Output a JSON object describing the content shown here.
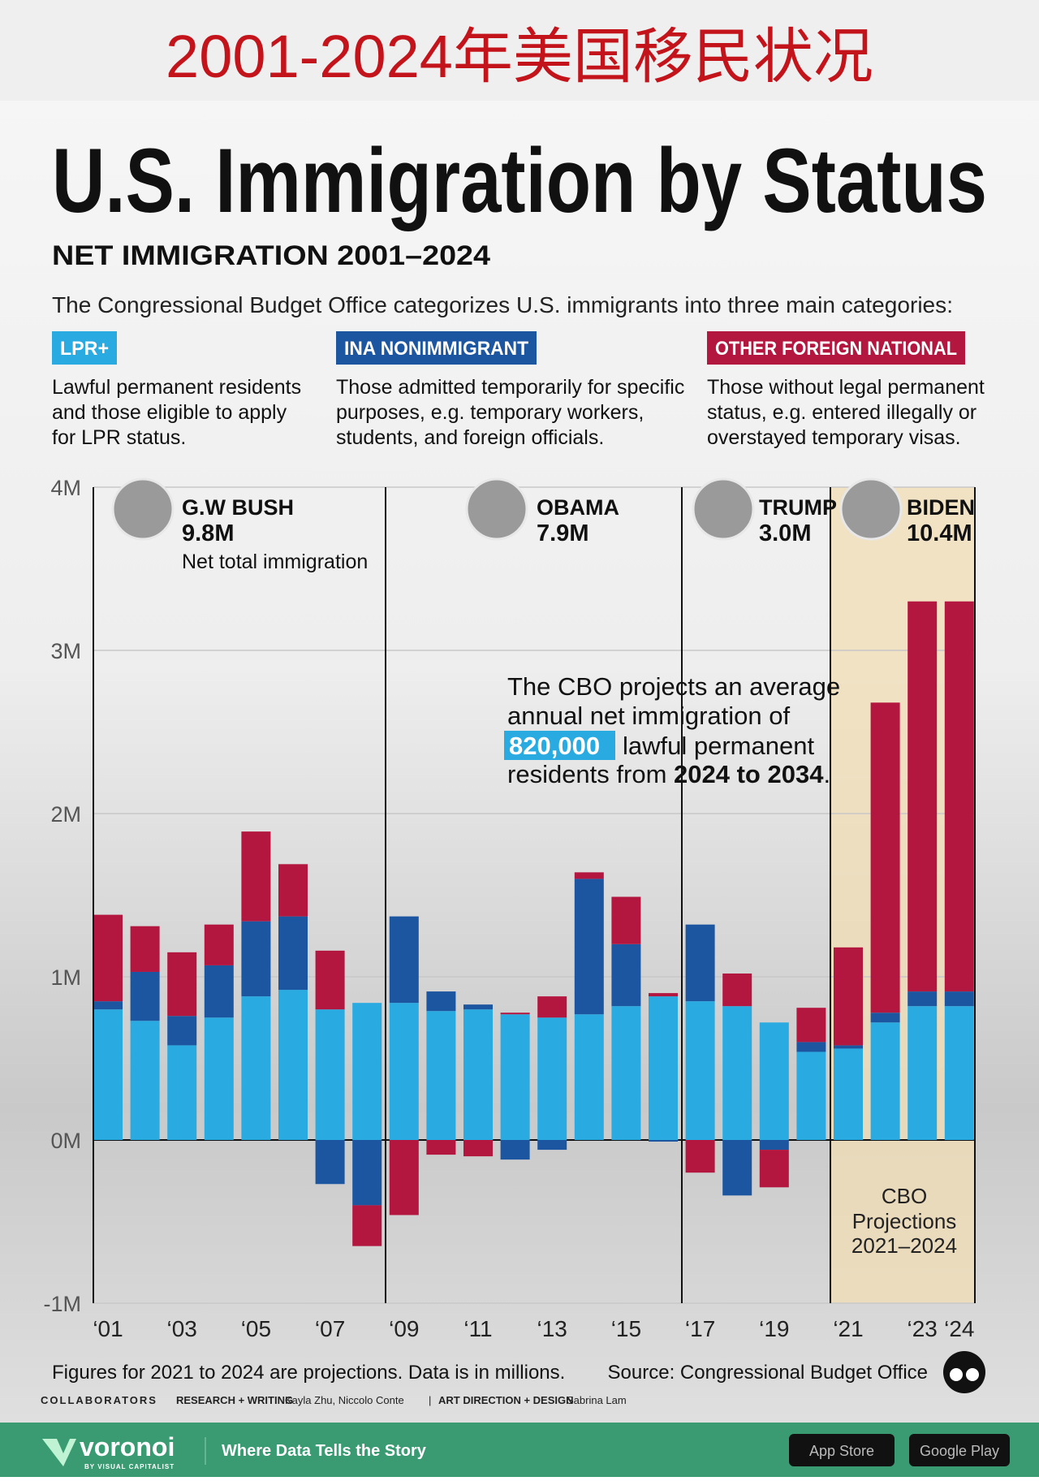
{
  "header": {
    "title": "2001-2024年美国移民状况"
  },
  "chart_data": {
    "type": "stacked_bar",
    "title": "U.S. Immigration by Status",
    "subtitle": "NET IMMIGRATION 2001–2024",
    "intro": "The Congressional Budget Office categorizes U.S. immigrants into three main categories:",
    "categories": [
      "‘01",
      null,
      "‘03",
      null,
      "‘05",
      null,
      "‘07",
      null,
      "‘09",
      null,
      "‘11",
      null,
      "‘13",
      null,
      "‘15",
      null,
      "‘17",
      null,
      "‘19",
      null,
      "‘21",
      null,
      "‘23",
      "‘24"
    ],
    "series": [
      {
        "name": "LPR+",
        "color": "#29abe2",
        "description": [
          "Lawful permanent residents",
          "and those eligible to apply",
          "for LPR status."
        ],
        "values": [
          0.8,
          0.73,
          0.58,
          0.75,
          0.88,
          0.92,
          0.8,
          0.84,
          0.84,
          0.79,
          0.8,
          0.77,
          0.75,
          0.77,
          0.82,
          0.88,
          0.85,
          0.82,
          0.72,
          0.54,
          0.56,
          0.72,
          0.82,
          0.82
        ]
      },
      {
        "name": "INA NONIMMIGRANT",
        "color": "#1d56a0",
        "description": [
          "Those admitted temporarily for specific",
          "purposes, e.g. temporary workers,",
          "students, and foreign officials."
        ],
        "values": [
          0.05,
          0.3,
          0.18,
          0.32,
          0.46,
          0.45,
          -0.27,
          -0.4,
          0.53,
          0.12,
          0.03,
          -0.12,
          -0.06,
          0.83,
          0.38,
          -0.01,
          0.47,
          -0.34,
          -0.06,
          0.06,
          0.02,
          0.06,
          0.09,
          0.09
        ]
      },
      {
        "name": "OTHER FOREIGN NATIONAL",
        "color": "#b3163f",
        "description": [
          "Those without legal permanent",
          "status, e.g. entered illegally or",
          "overstayed temporary visas."
        ],
        "values": [
          0.53,
          0.28,
          0.39,
          0.25,
          0.55,
          0.32,
          0.36,
          -0.25,
          -0.46,
          -0.09,
          -0.1,
          0.01,
          0.13,
          0.04,
          0.29,
          0.02,
          -0.2,
          0.2,
          -0.23,
          0.21,
          0.6,
          1.9,
          2.39,
          2.39
        ]
      }
    ],
    "ylim": [
      -1,
      4
    ],
    "yticks": [
      {
        "value": -1,
        "label": "-1M"
      },
      {
        "value": 0,
        "label": "0M"
      },
      {
        "value": 1,
        "label": "1M"
      },
      {
        "value": 2,
        "label": "2M"
      },
      {
        "value": 3,
        "label": "3M"
      },
      {
        "value": 4,
        "label": "4M"
      }
    ],
    "grid": true,
    "presidents": [
      {
        "name": "G.W BUSH",
        "total": "9.8M",
        "note": "Net total immigration"
      },
      {
        "name": "OBAMA",
        "total": "7.9M"
      },
      {
        "name": "TRUMP",
        "total": "3.0M"
      },
      {
        "name": "BIDEN",
        "total": "10.4M"
      }
    ],
    "cbo_note": {
      "line1": "The CBO projects an average",
      "line2": "annual net immigration of",
      "highlight": "820,000",
      "line3": "lawful permanent",
      "line4a": "residents from",
      "line4b": "2024 to 2034",
      "line4c": "."
    },
    "projection_label": [
      "CBO",
      "Projections",
      "2021–2024"
    ],
    "footnote": "Figures for 2021 to 2024 are projections. Data is in millions.",
    "source": "Source: Congressional Budget Office"
  },
  "credits": {
    "collaborators": "COLLABORATORS",
    "research_label": "RESEARCH + WRITING",
    "research": "Kayla Zhu, Niccolo Conte",
    "sep": "|",
    "art_label": "ART DIRECTION + DESIGN",
    "art": "Sabrina Lam"
  },
  "footer": {
    "brand": "voronoi",
    "brand_sub": "BY VISUAL CAPITALIST",
    "tagline": "Where Data Tells the Story",
    "app_store": "App Store",
    "google_play": "Google Play"
  }
}
